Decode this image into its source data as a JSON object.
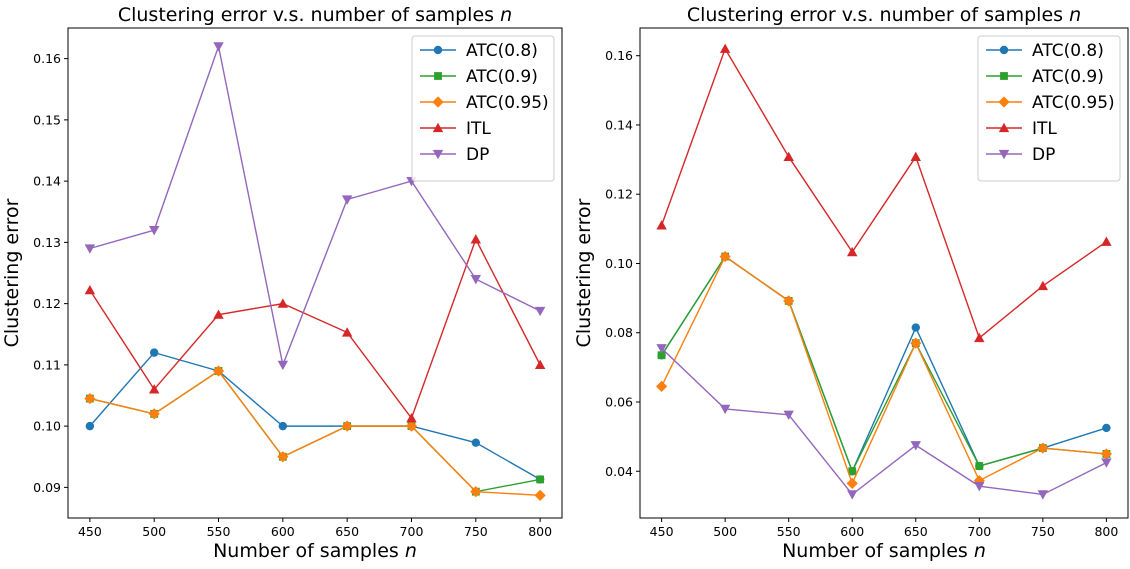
{
  "chart_data": [
    {
      "type": "line",
      "title": "Clustering error v.s. number of samples ",
      "title_var": "n",
      "xlabel": "Number of samples ",
      "xlabel_var": "n",
      "ylabel": "Clustering error",
      "x": [
        450,
        500,
        550,
        600,
        650,
        700,
        750,
        800
      ],
      "xlim": [
        433,
        817
      ],
      "ylim": [
        0.085,
        0.165
      ],
      "yticks": [
        0.09,
        0.1,
        0.11,
        0.12,
        0.13,
        0.14,
        0.15,
        0.16
      ],
      "ytick_labels": [
        "0.09",
        "0.10",
        "0.11",
        "0.12",
        "0.13",
        "0.14",
        "0.15",
        "0.16"
      ],
      "grid": false,
      "legend_position": "top-right",
      "series": [
        {
          "name": "ATC(0.8)",
          "color": "#1f77b4",
          "marker": "circle",
          "values": [
            0.1,
            0.112,
            0.109,
            0.1,
            0.1,
            0.1,
            0.0973,
            0.0913
          ]
        },
        {
          "name": "ATC(0.9)",
          "color": "#2ca02c",
          "marker": "square",
          "values": [
            0.1045,
            0.102,
            0.109,
            0.095,
            0.1,
            0.1,
            0.0893,
            0.0913
          ]
        },
        {
          "name": "ATC(0.95)",
          "color": "#ff7f0e",
          "marker": "diamond",
          "values": [
            0.1045,
            0.102,
            0.109,
            0.095,
            0.1,
            0.1,
            0.0893,
            0.0887
          ]
        },
        {
          "name": "ITL",
          "color": "#d62728",
          "marker": "triangle-up",
          "values": [
            0.1222,
            0.106,
            0.1182,
            0.12,
            0.1153,
            0.1013,
            0.1305,
            0.11
          ]
        },
        {
          "name": "DP",
          "color": "#9467bd",
          "marker": "triangle-down",
          "values": [
            0.129,
            0.132,
            0.162,
            0.11,
            0.137,
            0.14,
            0.124,
            0.1188
          ]
        }
      ]
    },
    {
      "type": "line",
      "title": "Clustering error v.s. number of samples ",
      "title_var": "n",
      "xlabel": "Number of samples ",
      "xlabel_var": "n",
      "ylabel": "Clustering error",
      "x": [
        450,
        500,
        550,
        600,
        650,
        700,
        750,
        800
      ],
      "xlim": [
        433,
        817
      ],
      "ylim": [
        0.0265,
        0.168
      ],
      "yticks": [
        0.04,
        0.06,
        0.08,
        0.1,
        0.12,
        0.14,
        0.16
      ],
      "ytick_labels": [
        "0.04",
        "0.06",
        "0.08",
        "0.10",
        "0.12",
        "0.14",
        "0.16"
      ],
      "grid": false,
      "legend_position": "top-right",
      "series": [
        {
          "name": "ATC(0.8)",
          "color": "#1f77b4",
          "marker": "circle",
          "values": [
            0.0735,
            0.102,
            0.0892,
            0.04,
            0.0815,
            0.0415,
            0.0467,
            0.0525
          ]
        },
        {
          "name": "ATC(0.9)",
          "color": "#2ca02c",
          "marker": "square",
          "values": [
            0.0735,
            0.102,
            0.0892,
            0.04,
            0.077,
            0.0415,
            0.0467,
            0.045
          ]
        },
        {
          "name": "ATC(0.95)",
          "color": "#ff7f0e",
          "marker": "diamond",
          "values": [
            0.0645,
            0.102,
            0.0892,
            0.0365,
            0.077,
            0.0373,
            0.0467,
            0.045
          ]
        },
        {
          "name": "ITL",
          "color": "#d62728",
          "marker": "triangle-up",
          "values": [
            0.111,
            0.162,
            0.1308,
            0.1033,
            0.1308,
            0.0785,
            0.0935,
            0.1063
          ]
        },
        {
          "name": "DP",
          "color": "#9467bd",
          "marker": "triangle-down",
          "values": [
            0.0755,
            0.058,
            0.0563,
            0.0333,
            0.0475,
            0.0357,
            0.0333,
            0.0425
          ]
        }
      ]
    }
  ]
}
